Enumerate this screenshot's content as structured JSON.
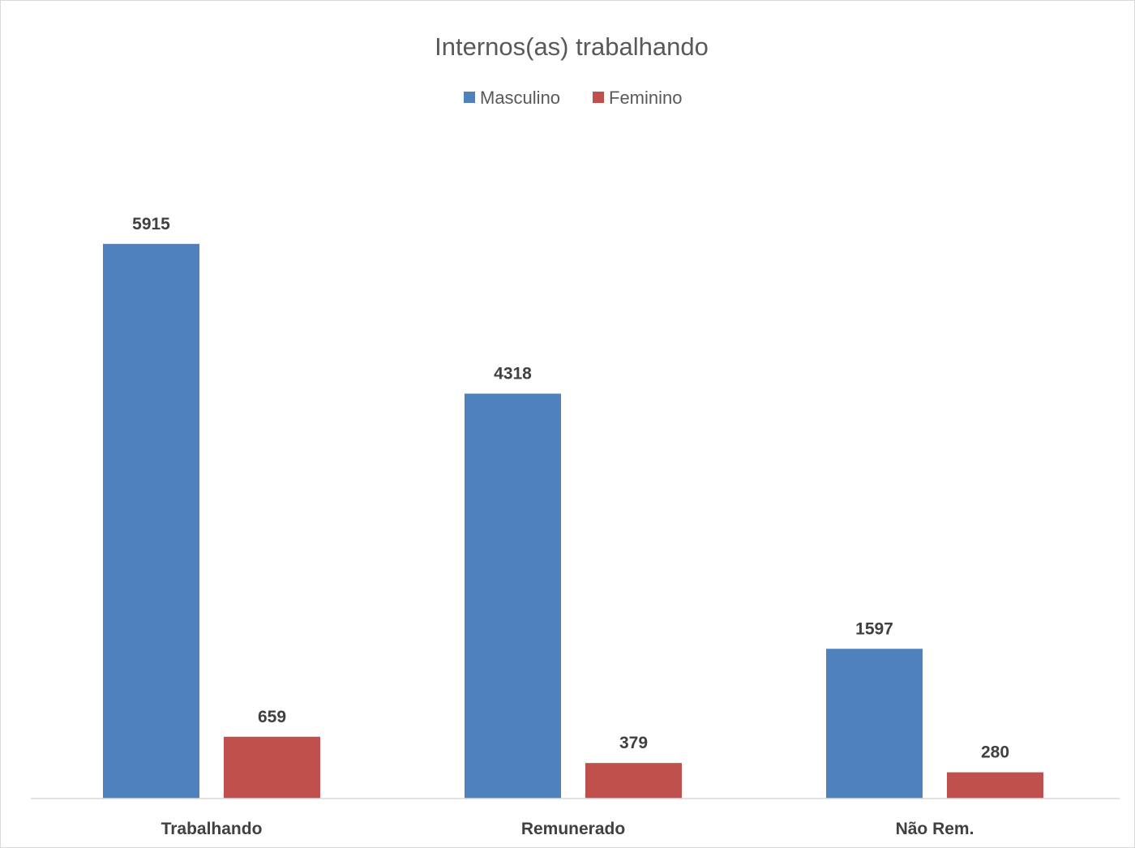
{
  "chart_data": {
    "type": "bar",
    "title": "Internos(as) trabalhando",
    "categories": [
      "Trabalhando",
      "Remunerado",
      "Não Rem."
    ],
    "series": [
      {
        "name": "Masculino",
        "values": [
          5915,
          4318,
          1597
        ],
        "color": "#4f81bd"
      },
      {
        "name": "Feminino",
        "values": [
          659,
          379,
          280
        ],
        "color": "#c0504d"
      }
    ],
    "xlabel": "",
    "ylabel": "",
    "ylim": [
      0,
      7000
    ],
    "grid": false,
    "legend_position": "top",
    "data_labels": true
  }
}
